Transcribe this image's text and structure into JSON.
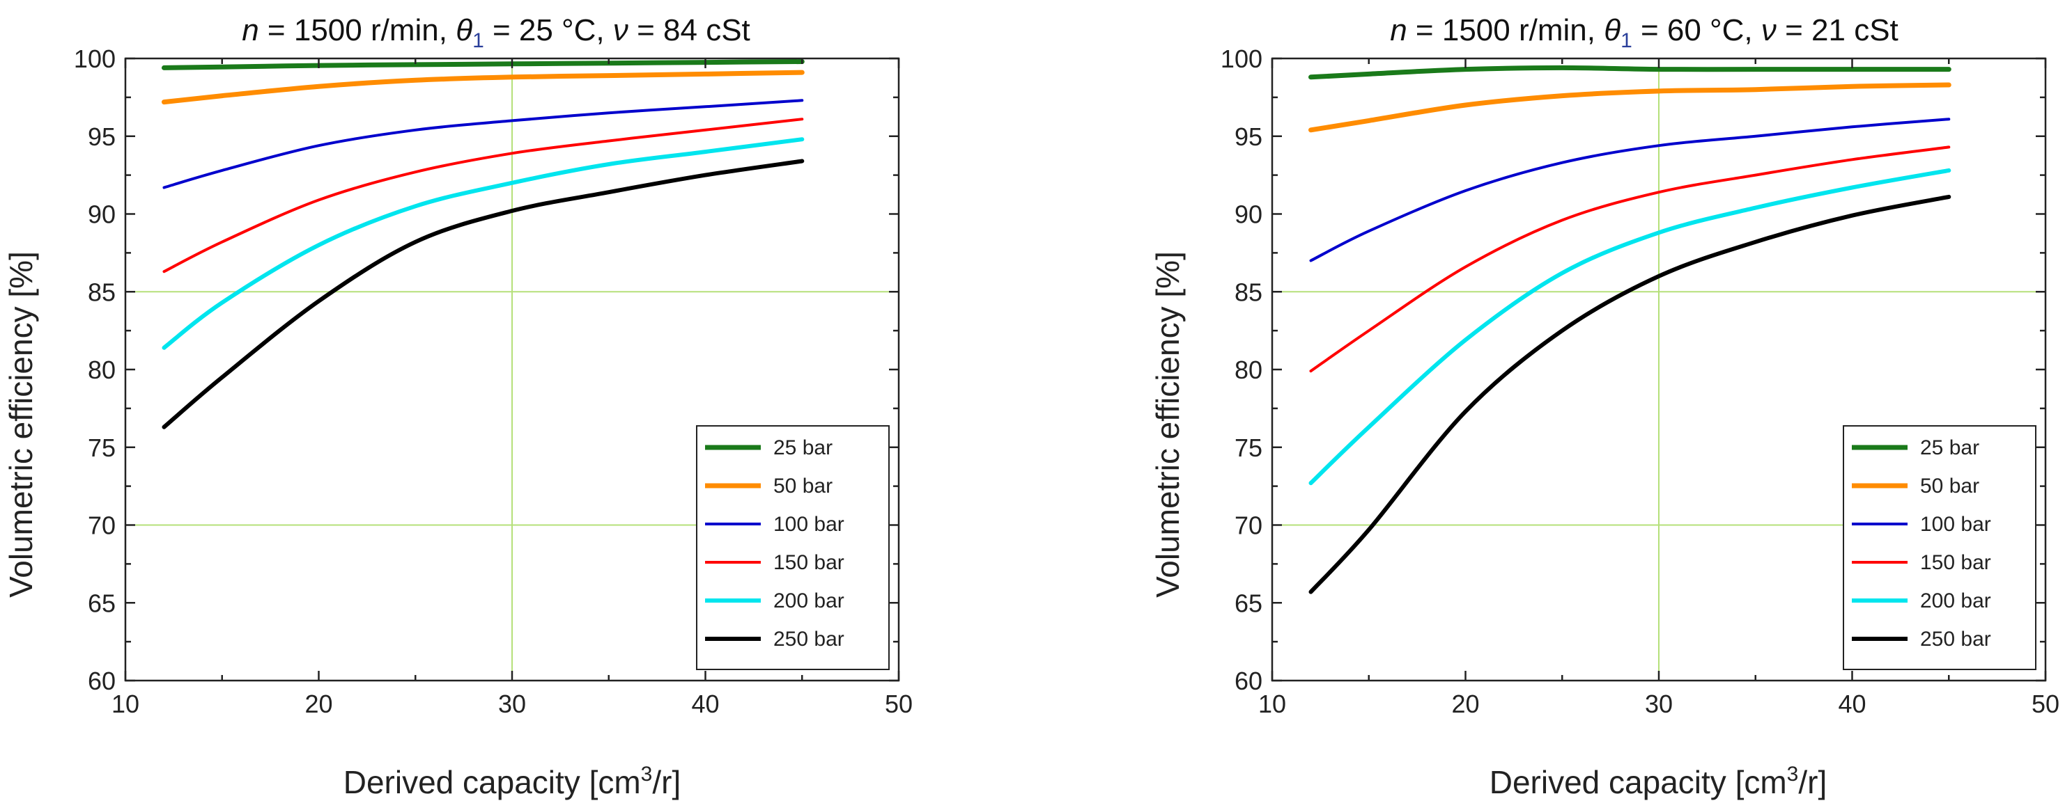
{
  "chart_data": [
    {
      "type": "line",
      "title": {
        "n_sym": "n",
        "n_text": " = 1500 r/min, ",
        "theta_sym": "θ",
        "theta_sub": "1",
        "theta_text": " = 25 °C, ",
        "nu_sym": "ν",
        "nu_text": " = 84 cSt"
      },
      "xlabel": {
        "main": "Derived capacity [cm",
        "sup": "3",
        "tail": "/r]"
      },
      "ylabel": "Volumetric efficiency [%]",
      "xlim": [
        10,
        50
      ],
      "ylim": [
        60,
        100
      ],
      "xticks": [
        10,
        20,
        30,
        40,
        50
      ],
      "yticks": [
        60,
        65,
        70,
        75,
        80,
        85,
        90,
        95,
        100
      ],
      "grid_x": [
        30
      ],
      "grid_y": [
        70,
        85
      ],
      "legend_position": "bottom-right",
      "series": [
        {
          "name": "25 bar",
          "color": "#1a7a1a",
          "x": [
            12,
            15,
            20,
            25,
            30,
            35,
            40,
            45
          ],
          "y": [
            99.4,
            99.45,
            99.55,
            99.6,
            99.65,
            99.7,
            99.75,
            99.8
          ]
        },
        {
          "name": "50 bar",
          "color": "#ff8c00",
          "x": [
            12,
            15,
            20,
            25,
            30,
            35,
            40,
            45
          ],
          "y": [
            97.2,
            97.6,
            98.2,
            98.6,
            98.8,
            98.9,
            99.0,
            99.1
          ]
        },
        {
          "name": "100 bar",
          "color": "#0000cc",
          "x": [
            12,
            15,
            20,
            25,
            30,
            35,
            40,
            45
          ],
          "y": [
            91.7,
            92.8,
            94.4,
            95.4,
            96.0,
            96.5,
            96.9,
            97.3
          ]
        },
        {
          "name": "150 bar",
          "color": "#ff0000",
          "x": [
            12,
            15,
            20,
            25,
            30,
            35,
            40,
            45
          ],
          "y": [
            86.3,
            88.2,
            90.9,
            92.7,
            93.9,
            94.7,
            95.4,
            96.1
          ]
        },
        {
          "name": "200 bar",
          "color": "#00e5ee",
          "x": [
            12,
            15,
            20,
            25,
            30,
            35,
            40,
            45
          ],
          "y": [
            81.4,
            84.3,
            88.0,
            90.5,
            92.0,
            93.2,
            94.0,
            94.8
          ]
        },
        {
          "name": "250 bar",
          "color": "#000000",
          "x": [
            12,
            15,
            20,
            25,
            30,
            35,
            40,
            45
          ],
          "y": [
            76.3,
            79.5,
            84.4,
            88.2,
            90.2,
            91.4,
            92.5,
            93.4
          ]
        }
      ]
    },
    {
      "type": "line",
      "title": {
        "n_sym": "n",
        "n_text": " = 1500 r/min, ",
        "theta_sym": "θ",
        "theta_sub": "1",
        "theta_text": " = 60 °C, ",
        "nu_sym": "ν",
        "nu_text": " = 21 cSt"
      },
      "xlabel": {
        "main": "Derived capacity [cm",
        "sup": "3",
        "tail": "/r]"
      },
      "ylabel": "Volumetric efficiency [%]",
      "xlim": [
        10,
        50
      ],
      "ylim": [
        60,
        100
      ],
      "xticks": [
        10,
        20,
        30,
        40,
        50
      ],
      "yticks": [
        60,
        65,
        70,
        75,
        80,
        85,
        90,
        95,
        100
      ],
      "grid_x": [
        30
      ],
      "grid_y": [
        70,
        85
      ],
      "legend_position": "bottom-right",
      "series": [
        {
          "name": "25 bar",
          "color": "#1a7a1a",
          "x": [
            12,
            15,
            20,
            25,
            30,
            35,
            40,
            45
          ],
          "y": [
            98.8,
            99.0,
            99.3,
            99.4,
            99.3,
            99.3,
            99.3,
            99.3
          ]
        },
        {
          "name": "50 bar",
          "color": "#ff8c00",
          "x": [
            12,
            15,
            20,
            25,
            30,
            35,
            40,
            45
          ],
          "y": [
            95.4,
            96.0,
            97.0,
            97.6,
            97.9,
            98.0,
            98.2,
            98.3
          ]
        },
        {
          "name": "100 bar",
          "color": "#0000cc",
          "x": [
            12,
            15,
            20,
            25,
            30,
            35,
            40,
            45
          ],
          "y": [
            87.0,
            88.9,
            91.5,
            93.3,
            94.4,
            95.0,
            95.6,
            96.1
          ]
        },
        {
          "name": "150 bar",
          "color": "#ff0000",
          "x": [
            12,
            15,
            20,
            25,
            30,
            35,
            40,
            45
          ],
          "y": [
            79.9,
            82.5,
            86.6,
            89.6,
            91.4,
            92.5,
            93.5,
            94.3
          ]
        },
        {
          "name": "200 bar",
          "color": "#00e5ee",
          "x": [
            12,
            15,
            20,
            25,
            30,
            35,
            40,
            45
          ],
          "y": [
            72.7,
            76.3,
            81.9,
            86.2,
            88.8,
            90.4,
            91.7,
            92.8
          ]
        },
        {
          "name": "250 bar",
          "color": "#000000",
          "x": [
            12,
            15,
            20,
            25,
            30,
            35,
            40,
            45
          ],
          "y": [
            65.7,
            69.7,
            77.3,
            82.5,
            86.0,
            88.2,
            89.9,
            91.1
          ]
        }
      ]
    }
  ]
}
